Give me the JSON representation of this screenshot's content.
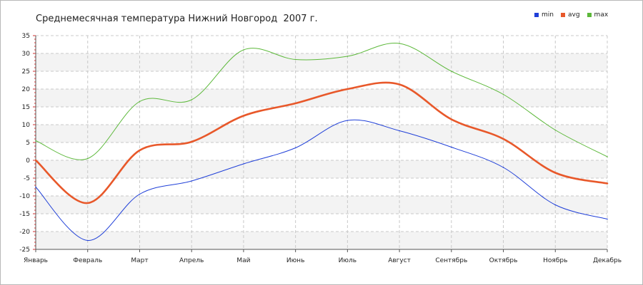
{
  "chart_data": {
    "type": "line",
    "title": "Среднемесячная температура Нижний Новгород  2007 г.",
    "categories": [
      "Январь",
      "Февраль",
      "Март",
      "Апрель",
      "Май",
      "Июнь",
      "Июль",
      "Август",
      "Сентябрь",
      "Октябрь",
      "Ноябрь",
      "Декабрь"
    ],
    "series": [
      {
        "name": "min",
        "color": "#1f3fd8",
        "values": [
          -7.5,
          -22.5,
          -9.5,
          -5.8,
          -1,
          3.5,
          11.2,
          8.3,
          3.7,
          -2,
          -12.5,
          -16.5
        ]
      },
      {
        "name": "avg",
        "color": "#e8582a",
        "values": [
          0,
          -12,
          2.8,
          5.2,
          12.5,
          16,
          20,
          21.3,
          11.5,
          6,
          -3.5,
          -6.5
        ]
      },
      {
        "name": "max",
        "color": "#5cb83a",
        "values": [
          5.5,
          0.5,
          16.5,
          17,
          31,
          28.3,
          29.2,
          32.8,
          25,
          18.5,
          8.5,
          1
        ]
      }
    ],
    "ylim": [
      -25,
      35
    ],
    "yticks": [
      "35",
      "30",
      "25",
      "20",
      "15",
      "10",
      "5",
      "0",
      "-5",
      "-10",
      "-15",
      "-20",
      "-25"
    ],
    "grid": true,
    "legend_position": "top-right"
  }
}
